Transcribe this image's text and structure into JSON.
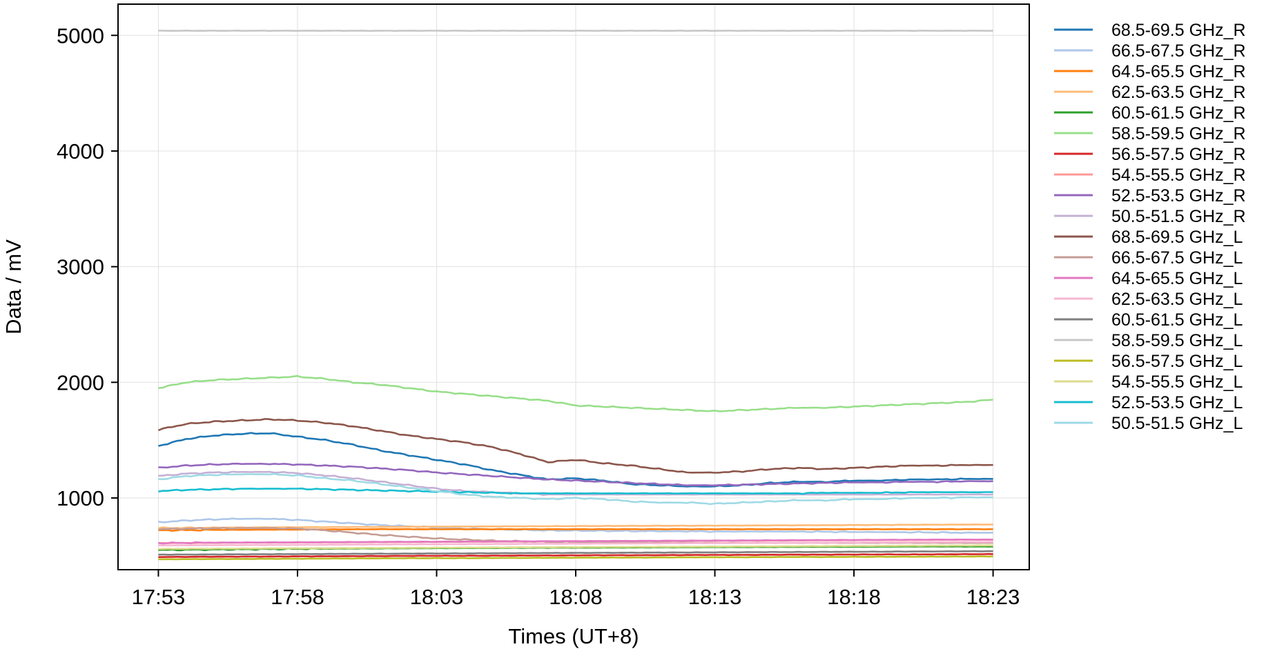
{
  "chart_data": {
    "type": "line",
    "xlabel": "Times (UT+8)",
    "ylabel": "Data / mV",
    "x_ticks": [
      "17:53",
      "17:58",
      "18:03",
      "18:08",
      "18:13",
      "18:18",
      "18:23"
    ],
    "x_tick_minutes": [
      0,
      5,
      10,
      15,
      20,
      25,
      30
    ],
    "xlim_minutes": [
      -1.45,
      31.3
    ],
    "y_ticks": [
      1000,
      2000,
      3000,
      4000,
      5000
    ],
    "ylim": [
      380,
      5270
    ],
    "grid": true,
    "legend_position": "outside-right",
    "x_minutes": [
      0,
      1,
      2,
      3,
      4,
      5,
      6,
      7,
      8,
      9,
      10,
      11,
      12,
      13,
      14,
      15,
      16,
      17,
      18,
      19,
      20,
      21,
      22,
      23,
      24,
      25,
      26,
      27,
      28,
      29,
      30
    ],
    "series": [
      {
        "name": "68.5-69.5 GHz_R",
        "color": "#1f77b4",
        "values": [
          1450,
          1510,
          1540,
          1555,
          1560,
          1530,
          1500,
          1460,
          1410,
          1370,
          1330,
          1290,
          1240,
          1200,
          1160,
          1170,
          1150,
          1120,
          1110,
          1100,
          1100,
          1110,
          1130,
          1140,
          1140,
          1150,
          1150,
          1160,
          1160,
          1165,
          1165
        ]
      },
      {
        "name": "66.5-67.5 GHz_R",
        "color": "#aec7e8",
        "values": [
          790,
          805,
          815,
          820,
          820,
          810,
          795,
          780,
          765,
          755,
          745,
          735,
          730,
          725,
          720,
          718,
          716,
          714,
          712,
          712,
          710,
          710,
          710,
          710,
          708,
          706,
          705,
          704,
          702,
          700,
          700
        ]
      },
      {
        "name": "64.5-65.5 GHz_R",
        "color": "#ff7f0e",
        "values": [
          720,
          722,
          724,
          725,
          726,
          727,
          728,
          729,
          730,
          730,
          730,
          730,
          730,
          730,
          730,
          730,
          730,
          730,
          730,
          730,
          730,
          730,
          730,
          730,
          730,
          730,
          730,
          730,
          730,
          730,
          730
        ]
      },
      {
        "name": "62.5-63.5 GHz_R",
        "color": "#ffbb78",
        "values": [
          740,
          742,
          744,
          745,
          746,
          747,
          748,
          749,
          750,
          751,
          752,
          753,
          754,
          755,
          756,
          757,
          758,
          759,
          760,
          760,
          761,
          762,
          763,
          764,
          765,
          766,
          767,
          768,
          769,
          770,
          770
        ]
      },
      {
        "name": "60.5-61.5 GHz_R",
        "color": "#2ca02c",
        "values": [
          550,
          552,
          554,
          556,
          558,
          560,
          562,
          563,
          564,
          565,
          566,
          567,
          568,
          569,
          570,
          570,
          571,
          572,
          573,
          574,
          575,
          575,
          576,
          577,
          578,
          578,
          579,
          580,
          580,
          580,
          580
        ]
      },
      {
        "name": "58.5-59.5 GHz_R",
        "color": "#98df8a",
        "values": [
          1950,
          2000,
          2020,
          2030,
          2040,
          2050,
          2030,
          2000,
          1980,
          1950,
          1920,
          1900,
          1880,
          1860,
          1840,
          1800,
          1790,
          1780,
          1770,
          1760,
          1750,
          1760,
          1770,
          1780,
          1780,
          1790,
          1800,
          1810,
          1820,
          1830,
          1850
        ]
      },
      {
        "name": "56.5-57.5 GHz_R",
        "color": "#d62728",
        "values": [
          490,
          491,
          492,
          493,
          494,
          495,
          496,
          497,
          498,
          499,
          500,
          500,
          501,
          502,
          503,
          504,
          505,
          505,
          506,
          507,
          508,
          508,
          509,
          510,
          510,
          511,
          512,
          512,
          513,
          514,
          515
        ]
      },
      {
        "name": "54.5-55.5 GHz_R",
        "color": "#ff9896",
        "values": [
          610,
          611,
          612,
          613,
          614,
          615,
          616,
          617,
          618,
          619,
          620,
          621,
          622,
          623,
          624,
          625,
          626,
          627,
          628,
          629,
          630,
          631,
          632,
          633,
          634,
          635,
          636,
          637,
          638,
          639,
          640
        ]
      },
      {
        "name": "52.5-53.5 GHz_R",
        "color": "#9467bd",
        "values": [
          1260,
          1280,
          1290,
          1295,
          1295,
          1290,
          1280,
          1270,
          1255,
          1240,
          1220,
          1205,
          1190,
          1175,
          1160,
          1150,
          1140,
          1130,
          1120,
          1110,
          1110,
          1115,
          1120,
          1125,
          1130,
          1135,
          1135,
          1140,
          1140,
          1145,
          1145
        ]
      },
      {
        "name": "50.5-51.5 GHz_R",
        "color": "#c5b0d5",
        "values": [
          1190,
          1210,
          1220,
          1225,
          1225,
          1215,
          1195,
          1170,
          1140,
          1110,
          1080,
          1060,
          1050,
          1040,
          1030,
          1030,
          1030,
          1030,
          1030,
          1030,
          1030,
          1030,
          1030,
          1030,
          1030,
          1030,
          1030,
          1030,
          1030,
          1030,
          1030
        ]
      },
      {
        "name": "68.5-69.5 GHz_L",
        "color": "#8c564b",
        "values": [
          1590,
          1640,
          1660,
          1670,
          1680,
          1670,
          1650,
          1620,
          1580,
          1540,
          1510,
          1480,
          1440,
          1380,
          1310,
          1330,
          1300,
          1280,
          1250,
          1220,
          1220,
          1230,
          1250,
          1260,
          1250,
          1260,
          1270,
          1280,
          1280,
          1285,
          1285
        ]
      },
      {
        "name": "66.5-67.5 GHz_L",
        "color": "#c49c94",
        "values": [
          730,
          735,
          738,
          740,
          740,
          735,
          720,
          700,
          680,
          665,
          650,
          640,
          630,
          625,
          620,
          618,
          616,
          615,
          614,
          613,
          612,
          612,
          612,
          612,
          612,
          612,
          612,
          612,
          612,
          612,
          612
        ]
      },
      {
        "name": "64.5-65.5 GHz_L",
        "color": "#e377c2",
        "values": [
          610,
          612,
          614,
          615,
          616,
          617,
          618,
          619,
          620,
          621,
          622,
          623,
          624,
          625,
          626,
          627,
          628,
          629,
          630,
          631,
          632,
          633,
          634,
          635,
          636,
          637,
          638,
          639,
          640,
          640,
          640
        ]
      },
      {
        "name": "62.5-63.5 GHz_L",
        "color": "#f7b6d2",
        "values": [
          590,
          591,
          592,
          593,
          594,
          595,
          596,
          597,
          598,
          599,
          600,
          601,
          602,
          603,
          604,
          605,
          606,
          607,
          608,
          609,
          610,
          611,
          612,
          613,
          614,
          615,
          616,
          617,
          618,
          619,
          620
        ]
      },
      {
        "name": "60.5-61.5 GHz_L",
        "color": "#7f7f7f",
        "values": [
          510,
          511,
          512,
          513,
          514,
          515,
          516,
          517,
          518,
          519,
          520,
          521,
          522,
          523,
          524,
          525,
          526,
          527,
          528,
          529,
          530,
          531,
          532,
          533,
          534,
          535,
          536,
          537,
          538,
          539,
          540
        ]
      },
      {
        "name": "58.5-59.5 GHz_L",
        "color": "#c7c7c7",
        "values": [
          5040,
          5040,
          5040,
          5040,
          5040,
          5040,
          5040,
          5040,
          5040,
          5040,
          5040,
          5040,
          5040,
          5040,
          5040,
          5040,
          5040,
          5040,
          5040,
          5040,
          5040,
          5040,
          5040,
          5040,
          5040,
          5040,
          5040,
          5040,
          5040,
          5040,
          5040
        ]
      },
      {
        "name": "56.5-57.5 GHz_L",
        "color": "#bcbd22",
        "values": [
          470,
          471,
          472,
          473,
          474,
          475,
          476,
          477,
          478,
          479,
          480,
          480,
          481,
          482,
          483,
          484,
          485,
          485,
          486,
          487,
          488,
          488,
          489,
          490,
          490,
          491,
          492,
          492,
          493,
          494,
          495
        ]
      },
      {
        "name": "54.5-55.5 GHz_L",
        "color": "#dbdb8d",
        "values": [
          560,
          561,
          562,
          563,
          564,
          565,
          566,
          567,
          568,
          569,
          570,
          571,
          572,
          573,
          574,
          575,
          576,
          577,
          578,
          579,
          580,
          581,
          582,
          583,
          584,
          585,
          586,
          587,
          588,
          589,
          590
        ]
      },
      {
        "name": "52.5-53.5 GHz_L",
        "color": "#17becf",
        "values": [
          1060,
          1070,
          1075,
          1080,
          1080,
          1080,
          1075,
          1070,
          1065,
          1060,
          1055,
          1050,
          1045,
          1040,
          1040,
          1040,
          1040,
          1040,
          1040,
          1040,
          1040,
          1040,
          1040,
          1040,
          1045,
          1045,
          1045,
          1050,
          1050,
          1050,
          1050
        ]
      },
      {
        "name": "50.5-51.5 GHz_L",
        "color": "#9edae5",
        "values": [
          1160,
          1190,
          1200,
          1205,
          1205,
          1195,
          1170,
          1150,
          1120,
          1090,
          1060,
          1030,
          1010,
          1000,
          990,
          1000,
          990,
          970,
          960,
          960,
          950,
          960,
          970,
          980,
          980,
          990,
          990,
          1000,
          1000,
          1005,
          1005
        ]
      }
    ]
  }
}
